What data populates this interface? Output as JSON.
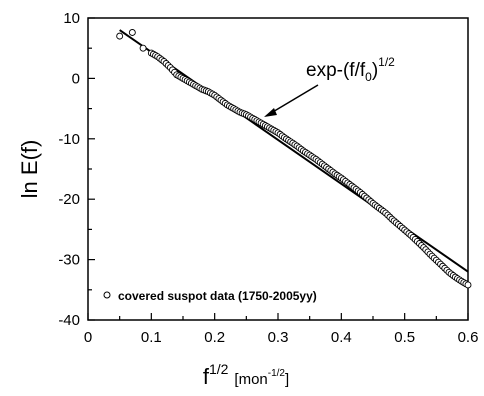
{
  "chart_data": {
    "type": "scatter",
    "title": "",
    "xlabel": {
      "base": "f",
      "sup": "1/2",
      "unit": "[mon",
      "unit_sup": "-1/2",
      "unit_close": "]"
    },
    "ylabel": "ln E(f)",
    "xlim": [
      0,
      0.6
    ],
    "ylim": [
      -40,
      10
    ],
    "x_ticks": [
      0,
      0.1,
      0.2,
      0.3,
      0.4,
      0.5,
      0.6
    ],
    "x_tick_labels": [
      "0",
      "0.1",
      "0.2",
      "0.3",
      "0.4",
      "0.5",
      "0.6"
    ],
    "y_ticks": [
      10,
      0,
      -10,
      -20,
      -30,
      -40
    ],
    "y_tick_labels": [
      "10",
      "0",
      "-10",
      "-20",
      "-30",
      "-40"
    ],
    "grid": false,
    "legend": {
      "position": "bottom-left",
      "entries": [
        "covered suspot data (1750-2005yy)"
      ]
    },
    "annotation": {
      "base": "exp-(f/f",
      "sub": "0",
      "close": ")",
      "sup": "1/2",
      "points_to": {
        "x": 0.27,
        "y": -6.5
      }
    },
    "fit_line": {
      "x": [
        0.05,
        0.6
      ],
      "y": [
        8.0,
        -32.0
      ]
    },
    "series": [
      {
        "type": "scatter",
        "points": [
          [
            0.05,
            7.0
          ],
          [
            0.07,
            7.6
          ],
          [
            0.087,
            5.0
          ],
          [
            0.1,
            4.2
          ],
          [
            0.11,
            3.6
          ],
          [
            0.12,
            2.8
          ],
          [
            0.13,
            1.8
          ],
          [
            0.14,
            0.6
          ],
          [
            0.15,
            0.0
          ],
          [
            0.16,
            -0.6
          ],
          [
            0.17,
            -1.2
          ],
          [
            0.18,
            -1.8
          ],
          [
            0.19,
            -2.2
          ],
          [
            0.2,
            -2.8
          ],
          [
            0.21,
            -3.6
          ],
          [
            0.22,
            -4.4
          ],
          [
            0.23,
            -5.0
          ],
          [
            0.24,
            -5.6
          ],
          [
            0.25,
            -6.0
          ],
          [
            0.26,
            -6.6
          ],
          [
            0.27,
            -7.2
          ],
          [
            0.28,
            -7.8
          ],
          [
            0.29,
            -8.4
          ],
          [
            0.3,
            -9.0
          ],
          [
            0.31,
            -9.8
          ],
          [
            0.32,
            -10.5
          ],
          [
            0.33,
            -11.2
          ],
          [
            0.34,
            -12.0
          ],
          [
            0.35,
            -12.7
          ],
          [
            0.36,
            -13.4
          ],
          [
            0.37,
            -14.2
          ],
          [
            0.38,
            -15.0
          ],
          [
            0.39,
            -15.8
          ],
          [
            0.4,
            -16.5
          ],
          [
            0.41,
            -17.3
          ],
          [
            0.42,
            -18.1
          ],
          [
            0.43,
            -18.9
          ],
          [
            0.44,
            -19.8
          ],
          [
            0.45,
            -20.7
          ],
          [
            0.46,
            -21.5
          ],
          [
            0.47,
            -22.3
          ],
          [
            0.48,
            -23.3
          ],
          [
            0.49,
            -24.2
          ],
          [
            0.5,
            -25.1
          ],
          [
            0.51,
            -26.0
          ],
          [
            0.52,
            -27.0
          ],
          [
            0.53,
            -28.0
          ],
          [
            0.54,
            -29.1
          ],
          [
            0.55,
            -30.1
          ],
          [
            0.56,
            -31.1
          ],
          [
            0.57,
            -32.1
          ],
          [
            0.58,
            -32.9
          ],
          [
            0.59,
            -33.6
          ],
          [
            0.6,
            -34.2
          ]
        ]
      }
    ]
  }
}
